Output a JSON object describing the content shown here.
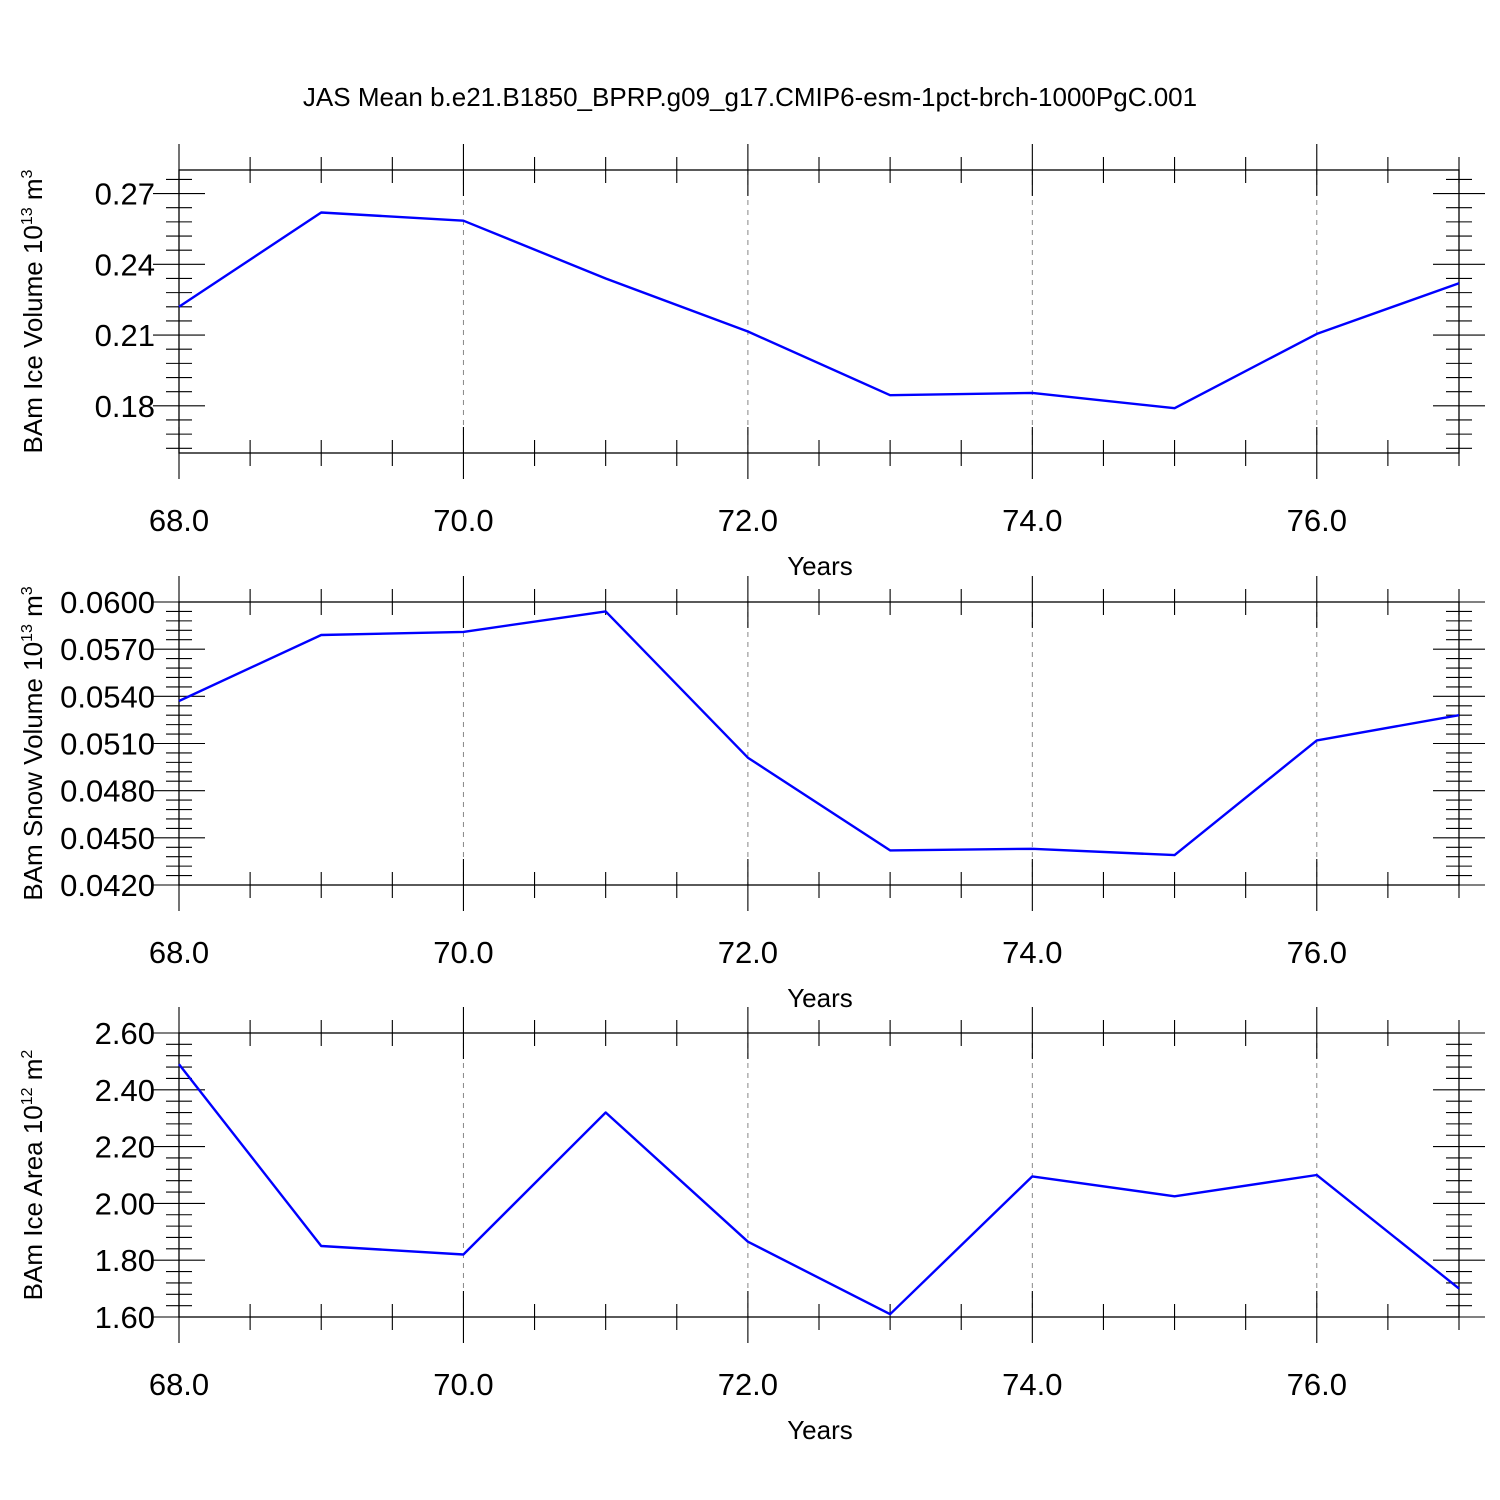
{
  "title": "JAS Mean b.e21.B1850_BPRP.g09_g17.CMIP6-esm-1pct-brch-1000PgC.001",
  "chart_data": [
    {
      "type": "line",
      "xlabel": "Years",
      "ylabel": "BAm Ice Volume 10",
      "ylabel_exp": "13",
      "ylabel_unit": " m",
      "ylabel_unit_exp": "3",
      "xlim": [
        68,
        77
      ],
      "ylim": [
        0.16,
        0.28
      ],
      "xticks": [
        68,
        70,
        72,
        74,
        76
      ],
      "xtick_labels": [
        "68.0",
        "70.0",
        "72.0",
        "74.0",
        "76.0"
      ],
      "yticks": [
        0.18,
        0.21,
        0.24,
        0.27
      ],
      "ytick_labels": [
        "0.18",
        "0.21",
        "0.24",
        "0.27"
      ],
      "grid": "vertical dashed at major x ticks",
      "color": "#0000ff",
      "x": [
        68,
        69,
        70,
        71,
        72,
        73,
        74,
        75,
        76,
        77
      ],
      "values": [
        0.222,
        0.262,
        0.2585,
        0.234,
        0.2115,
        0.1845,
        0.1855,
        0.179,
        0.2105,
        0.232
      ]
    },
    {
      "type": "line",
      "xlabel": "Years",
      "ylabel": "BAm Snow Volume 10",
      "ylabel_exp": "13",
      "ylabel_unit": " m",
      "ylabel_unit_exp": "3",
      "xlim": [
        68,
        77
      ],
      "ylim": [
        0.042,
        0.06
      ],
      "xticks": [
        68,
        70,
        72,
        74,
        76
      ],
      "xtick_labels": [
        "68.0",
        "70.0",
        "72.0",
        "74.0",
        "76.0"
      ],
      "yticks": [
        0.042,
        0.045,
        0.048,
        0.051,
        0.054,
        0.057,
        0.06
      ],
      "ytick_labels": [
        "0.0420",
        "0.0450",
        "0.0480",
        "0.0510",
        "0.0540",
        "0.0570",
        "0.0600"
      ],
      "grid": "vertical dashed at major x ticks",
      "color": "#0000ff",
      "x": [
        68,
        69,
        70,
        71,
        72,
        73,
        74,
        75,
        76,
        77
      ],
      "values": [
        0.0537,
        0.0579,
        0.0581,
        0.0594,
        0.0501,
        0.0442,
        0.0443,
        0.0439,
        0.0512,
        0.0528
      ]
    },
    {
      "type": "line",
      "xlabel": "Years",
      "ylabel": "BAm Ice Area 10",
      "ylabel_exp": "12",
      "ylabel_unit": " m",
      "ylabel_unit_exp": "2",
      "xlim": [
        68,
        77
      ],
      "ylim": [
        1.6,
        2.6
      ],
      "xticks": [
        68,
        70,
        72,
        74,
        76
      ],
      "xtick_labels": [
        "68.0",
        "70.0",
        "72.0",
        "74.0",
        "76.0"
      ],
      "yticks": [
        1.6,
        1.8,
        2.0,
        2.2,
        2.4,
        2.6
      ],
      "ytick_labels": [
        "1.60",
        "1.80",
        "2.00",
        "2.20",
        "2.40",
        "2.60"
      ],
      "grid": "vertical dashed at major x ticks",
      "color": "#0000ff",
      "x": [
        68,
        69,
        70,
        71,
        72,
        73,
        74,
        75,
        76,
        77
      ],
      "values": [
        2.49,
        1.85,
        1.82,
        2.32,
        1.865,
        1.61,
        2.095,
        2.025,
        2.1,
        1.7
      ]
    }
  ]
}
